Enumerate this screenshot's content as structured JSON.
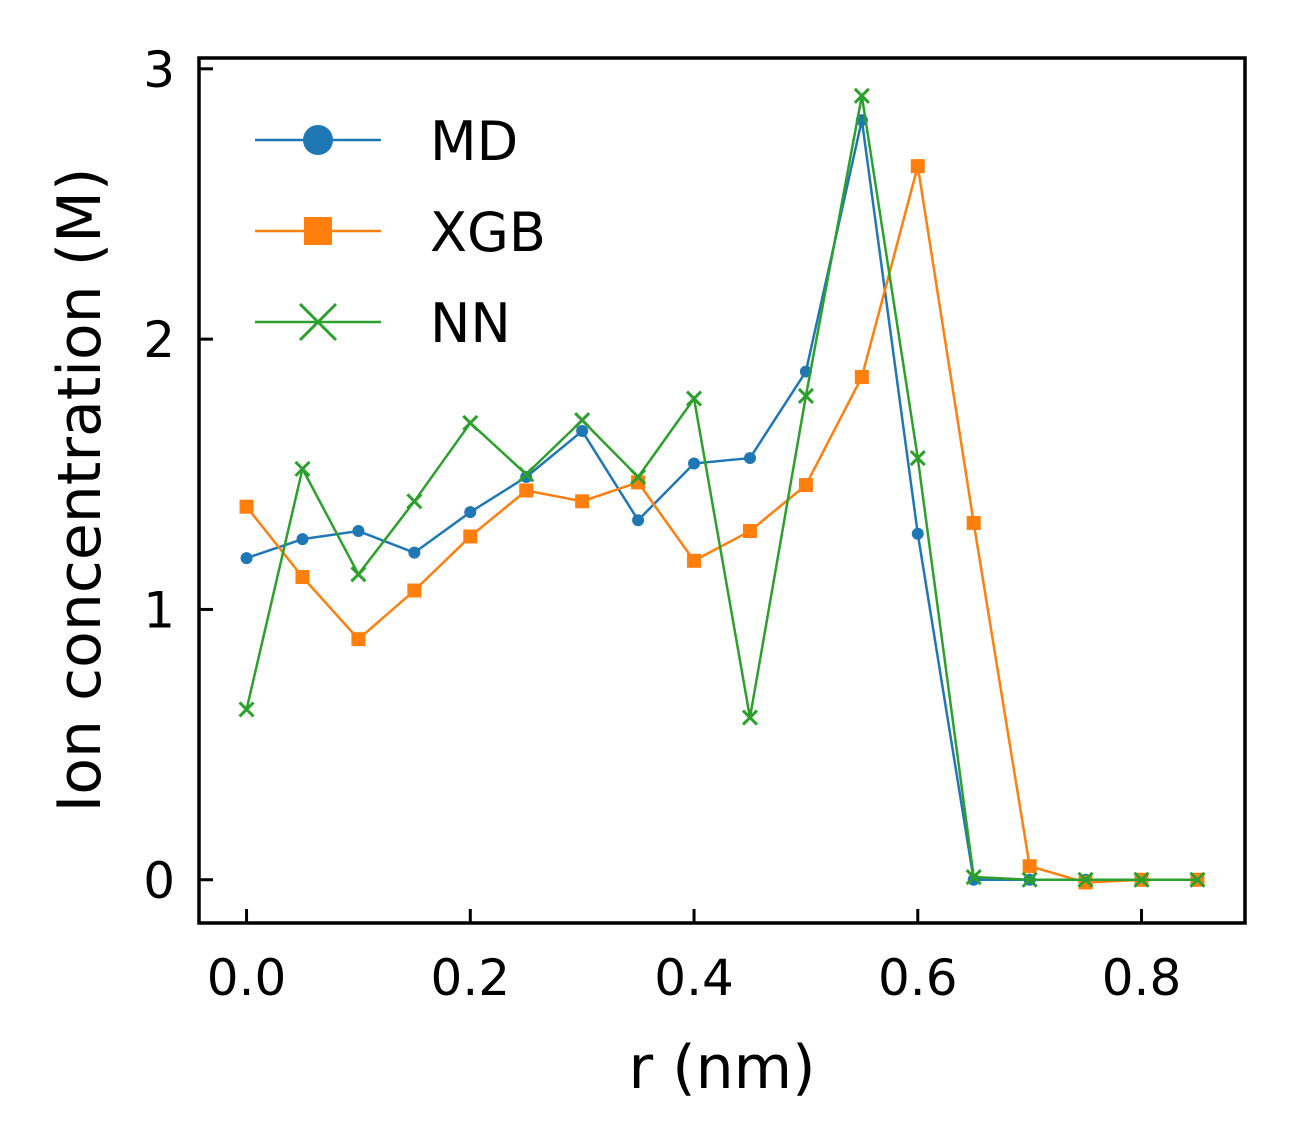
{
  "chart_data": {
    "type": "line",
    "xlabel": "r (nm)",
    "ylabel": "Ion concentration (M)",
    "xlim": [
      -0.0425,
      0.8925
    ],
    "ylim": [
      -0.16,
      3.04
    ],
    "xticks": [
      0.0,
      0.2,
      0.4,
      0.6,
      0.8
    ],
    "xtick_labels": [
      "0.0",
      "0.2",
      "0.4",
      "0.6",
      "0.8"
    ],
    "yticks": [
      0,
      1,
      2,
      3
    ],
    "ytick_labels": [
      "0",
      "1",
      "2",
      "3"
    ],
    "grid": false,
    "legend": "top-left",
    "x": [
      0.0,
      0.05,
      0.1,
      0.15,
      0.2,
      0.25,
      0.3,
      0.35,
      0.4,
      0.45,
      0.5,
      0.55,
      0.6,
      0.65,
      0.7,
      0.75,
      0.8,
      0.85
    ],
    "series": [
      {
        "name": "MD",
        "color": "#1f77b4",
        "marker": "circle",
        "values": [
          1.19,
          1.26,
          1.29,
          1.21,
          1.36,
          1.49,
          1.66,
          1.33,
          1.54,
          1.56,
          1.88,
          2.81,
          1.28,
          0.0,
          0.0,
          0.0,
          0.0,
          0.0
        ]
      },
      {
        "name": "XGB",
        "color": "#ff7f0e",
        "marker": "square",
        "values": [
          1.38,
          1.12,
          0.89,
          1.07,
          1.27,
          1.44,
          1.4,
          1.47,
          1.18,
          1.29,
          1.46,
          1.86,
          2.64,
          1.32,
          0.05,
          -0.01,
          0.0,
          0.0
        ]
      },
      {
        "name": "NN",
        "color": "#2ca02c",
        "marker": "x",
        "values": [
          0.63,
          1.52,
          1.13,
          1.4,
          1.69,
          1.5,
          1.7,
          1.49,
          1.78,
          0.6,
          1.79,
          2.9,
          1.56,
          0.01,
          0.0,
          0.0,
          0.0,
          0.0
        ]
      }
    ]
  }
}
